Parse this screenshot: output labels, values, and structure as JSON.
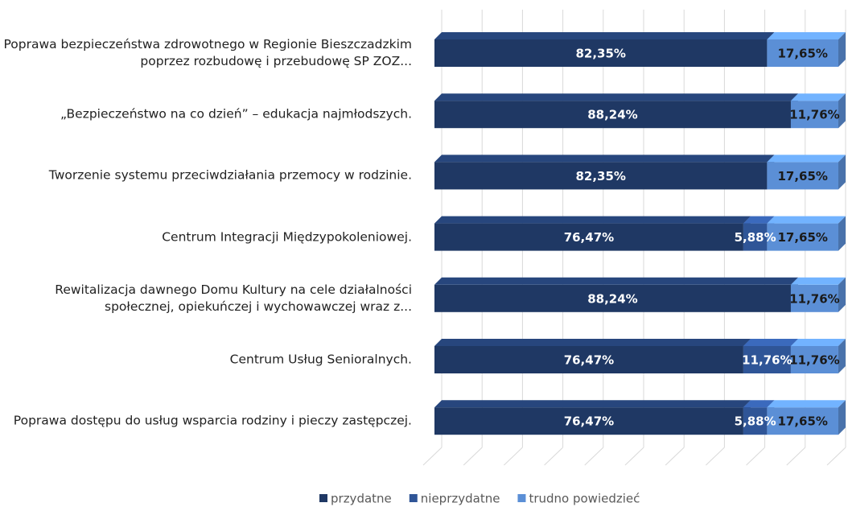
{
  "chart_data": {
    "type": "stacked_bar_horizontal_3d",
    "categories": [
      "Poprawa bezpieczeństwa zdrowotnego w Regionie Bieszczadzkim poprzez rozbudowę  i przebudowę SP ZOZ...",
      "„Bezpieczeństwo na co dzień” – edukacja najmłodszych.",
      "Tworzenie systemu przeciwdziałania przemocy w rodzinie.",
      "Centrum Integracji Międzypokoleniowej.",
      "Rewitalizacja dawnego Domu Kultury na cele działalności społecznej, opiekuńczej i wychowawczej wraz z...",
      "Centrum Usług Senioralnych.",
      "Poprawa dostępu do usług wsparcia rodziny i pieczy zastępczej."
    ],
    "series": [
      {
        "name": "przydatne",
        "color": "#1f3864",
        "values": [
          82.35,
          88.24,
          82.35,
          76.47,
          88.24,
          76.47,
          76.47
        ],
        "value_labels": [
          "82,35%",
          "88,24%",
          "82,35%",
          "76,47%",
          "88,24%",
          "76,47%",
          "76,47%"
        ]
      },
      {
        "name": "nieprzydatne",
        "color": "#2f5597",
        "values": [
          0,
          0,
          0,
          5.88,
          0,
          11.76,
          5.88
        ],
        "value_labels": [
          null,
          null,
          null,
          "5,88%",
          null,
          "11,76%",
          "5,88%"
        ]
      },
      {
        "name": "trudno powiedzieć",
        "color": "#5b8fd6",
        "values": [
          17.65,
          11.76,
          17.65,
          17.65,
          11.76,
          11.76,
          17.65
        ],
        "value_labels": [
          "17,65%",
          "11,76%",
          "17,65%",
          "17,65%",
          "11,76%",
          "11,76%",
          "17,65%"
        ]
      }
    ],
    "xlim": [
      0,
      100
    ],
    "xticks": [
      0,
      10,
      20,
      30,
      40,
      50,
      60,
      70,
      80,
      90,
      100
    ],
    "grid": true,
    "legend": "bottom"
  }
}
